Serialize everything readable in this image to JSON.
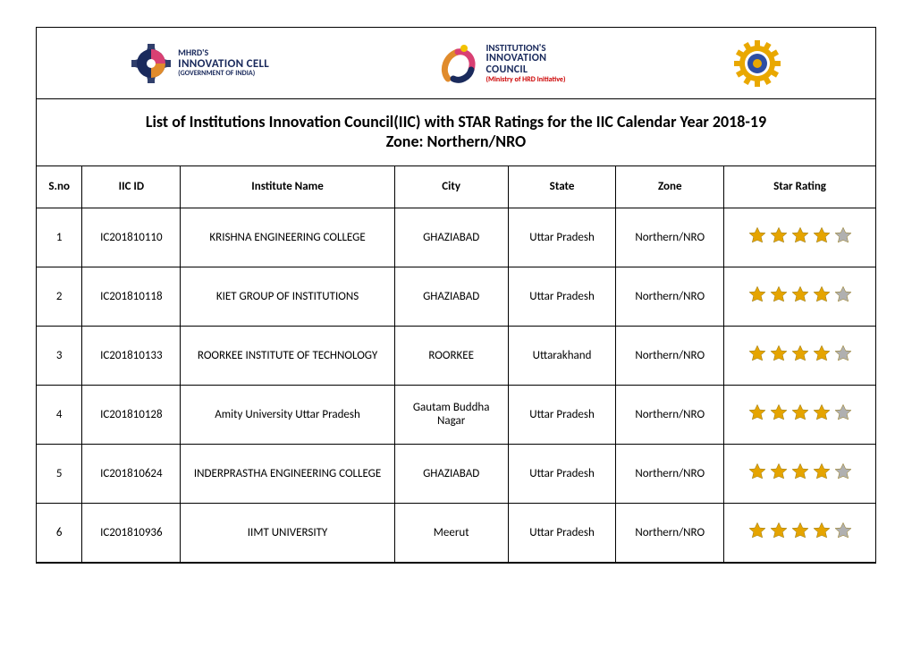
{
  "colors": {
    "border": "#000000",
    "text": "#000000",
    "background": "#ffffff",
    "star_gold": "#e5a400",
    "star_grey": "#b0b0b0",
    "logo_blue": "#1a2a5c",
    "logo_red": "#cc0000",
    "logo_orange": "#e08b2c",
    "logo_pink": "#d94073",
    "logo_yellow": "#f2c200",
    "emblem_gold": "#e9a800",
    "emblem_inner": "#2d4ea3"
  },
  "logos": {
    "left": {
      "l1": "MHRD'S",
      "l2": "INNOVATION CELL",
      "l3": "(GOVERNMENT OF INDIA)"
    },
    "middle": {
      "l1": "INSTITUTION'S",
      "l2a": "INNOVATION",
      "l2b": "COUNCIL",
      "l3": "(Ministry of HRD Initiative)"
    },
    "right_alt": "AICTE"
  },
  "title": {
    "line1": "List of Institutions Innovation Council(IIC) with STAR Ratings for the IIC Calendar Year 2018-19",
    "line2": "Zone: Northern/NRO"
  },
  "table": {
    "columns": [
      "S.no",
      "IIC ID",
      "Institute Name",
      "City",
      "State",
      "Zone",
      "Star Rating"
    ],
    "column_keys": [
      "sno",
      "iic_id",
      "name",
      "city",
      "state",
      "zone",
      "stars"
    ],
    "col_classes": [
      "c-sno",
      "c-iic",
      "c-name",
      "c-city",
      "c-state",
      "c-zone",
      "c-star"
    ],
    "max_stars": 5,
    "rows": [
      {
        "sno": "1",
        "iic_id": "IC201810110",
        "name": "KRISHNA ENGINEERING COLLEGE",
        "city": "GHAZIABAD",
        "state": "Uttar Pradesh",
        "zone": "Northern/NRO",
        "stars": 4
      },
      {
        "sno": "2",
        "iic_id": "IC201810118",
        "name": "KIET GROUP OF INSTITUTIONS",
        "city": "GHAZIABAD",
        "state": "Uttar Pradesh",
        "zone": "Northern/NRO",
        "stars": 4
      },
      {
        "sno": "3",
        "iic_id": "IC201810133",
        "name": "ROORKEE INSTITUTE OF TECHNOLOGY",
        "city": "ROORKEE",
        "state": "Uttarakhand",
        "zone": "Northern/NRO",
        "stars": 4
      },
      {
        "sno": "4",
        "iic_id": "IC201810128",
        "name": "Amity University Uttar Pradesh",
        "city": "Gautam Buddha Nagar",
        "state": "Uttar Pradesh",
        "zone": "Northern/NRO",
        "stars": 4
      },
      {
        "sno": "5",
        "iic_id": "IC201810624",
        "name": "INDERPRASTHA ENGINEERING COLLEGE",
        "city": "GHAZIABAD",
        "state": "Uttar Pradesh",
        "zone": "Northern/NRO",
        "stars": 4
      },
      {
        "sno": "6",
        "iic_id": "IC201810936",
        "name": "IIMT UNIVERSITY",
        "city": "Meerut",
        "state": "Uttar Pradesh",
        "zone": "Northern/NRO",
        "stars": 4
      }
    ]
  }
}
